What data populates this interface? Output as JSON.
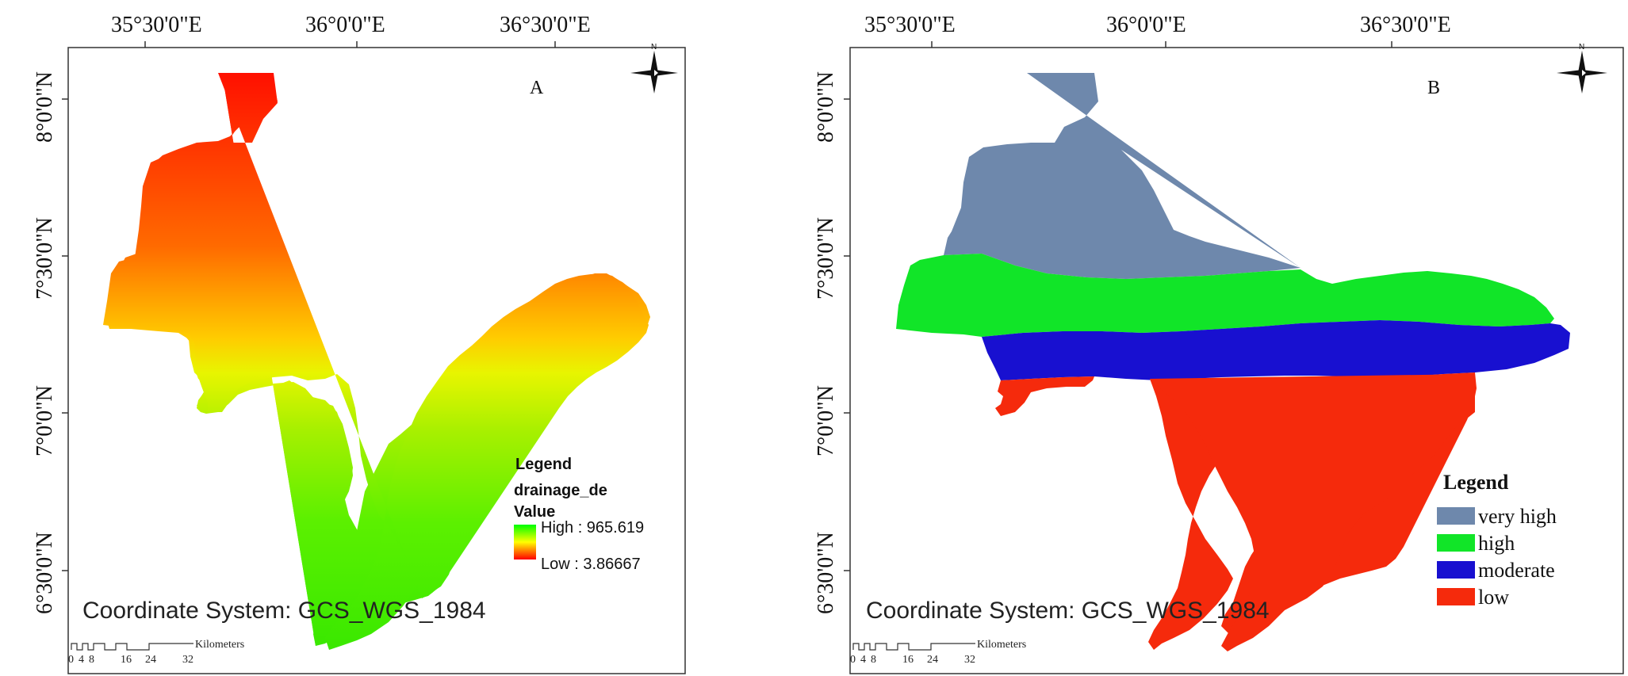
{
  "panelA": {
    "letter": "A",
    "lon_labels": [
      "35°30'0\"E",
      "36°0'0\"E",
      "36°30'0\"E"
    ],
    "lat_labels": [
      "8°0'0\"N",
      "7°30'0\"N",
      "7°0'0\"N",
      "6°30'0\"N"
    ],
    "north": "N",
    "coord_system": "Coordinate System: GCS_WGS_1984",
    "scale_units": "Kilometers",
    "scale_ticks": [
      "0",
      "4",
      "8",
      "16",
      "24",
      "32"
    ],
    "legend": {
      "title": "Legend",
      "layer": "drainage_de",
      "field": "Value",
      "high": "High : 965.619",
      "low": "Low : 3.86667",
      "ramp": [
        "#00ff00",
        "#ffff00",
        "#ff0000"
      ]
    }
  },
  "panelB": {
    "letter": "B",
    "lon_labels": [
      "35°30'0\"E",
      "36°0'0\"E",
      "36°30'0\"E"
    ],
    "lat_labels": [
      "8°0'0\"N",
      "7°30'0\"N",
      "7°0'0\"N",
      "6°30'0\"N"
    ],
    "north": "N",
    "coord_system": "Coordinate System: GCS_WGS_1984",
    "scale_units": "Kilometers",
    "scale_ticks": [
      "0",
      "4",
      "8",
      "16",
      "24",
      "32"
    ],
    "legend": {
      "title": "Legend",
      "classes": [
        {
          "label": "very high",
          "color": "#6e88ac"
        },
        {
          "label": "high",
          "color": "#11e528"
        },
        {
          "label": "moderate",
          "color": "#1810d0"
        },
        {
          "label": "low",
          "color": "#f52a0c"
        }
      ]
    }
  }
}
